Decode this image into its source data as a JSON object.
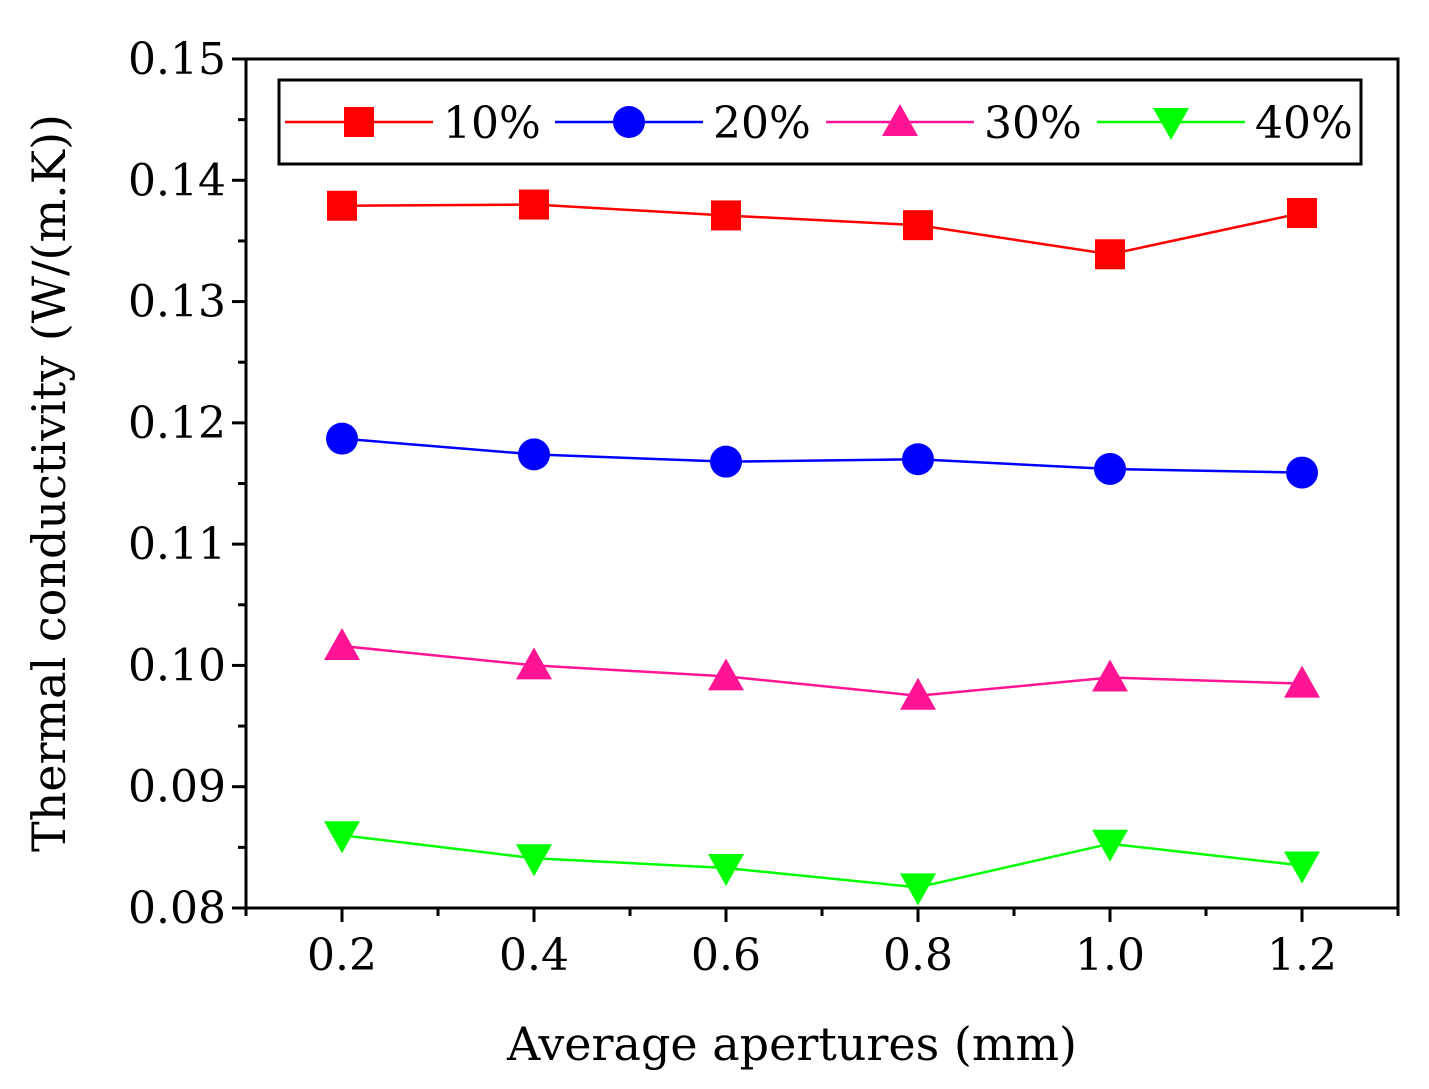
{
  "chart_data": {
    "type": "line",
    "title": "",
    "xlabel": "Average apertures (mm)",
    "ylabel": "Thermal conductivity (W/(m.K))",
    "xlim": [
      0.1,
      1.3
    ],
    "ylim": [
      0.08,
      0.15
    ],
    "xticks": [
      0.2,
      0.4,
      0.6,
      0.8,
      1.0,
      1.2
    ],
    "xtick_labels": [
      "0.2",
      "0.4",
      "0.6",
      "0.8",
      "1.0",
      "1.2"
    ],
    "yticks": [
      0.08,
      0.09,
      0.1,
      0.11,
      0.12,
      0.13,
      0.14,
      0.15
    ],
    "ytick_labels": [
      "0.08",
      "0.09",
      "0.10",
      "0.11",
      "0.12",
      "0.13",
      "0.14",
      "0.15"
    ],
    "x": [
      0.2,
      0.4,
      0.6,
      0.8,
      1.0,
      1.2
    ],
    "legend_position": "top",
    "series": [
      {
        "name": "10%",
        "marker": "square",
        "color": "#ff0000",
        "values": [
          0.1379,
          0.138,
          0.1371,
          0.1363,
          0.1339,
          0.1373
        ]
      },
      {
        "name": "20%",
        "marker": "circle",
        "color": "#0000ff",
        "values": [
          0.1187,
          0.1174,
          0.1168,
          0.117,
          0.1162,
          0.1159
        ]
      },
      {
        "name": "30%",
        "marker": "triangle-up",
        "color": "#ff1493",
        "values": [
          0.1016,
          0.1,
          0.0991,
          0.0975,
          0.099,
          0.0985
        ]
      },
      {
        "name": "40%",
        "marker": "triangle-down",
        "color": "#00ff00",
        "values": [
          0.086,
          0.0841,
          0.0833,
          0.0817,
          0.0853,
          0.0835
        ]
      }
    ]
  }
}
